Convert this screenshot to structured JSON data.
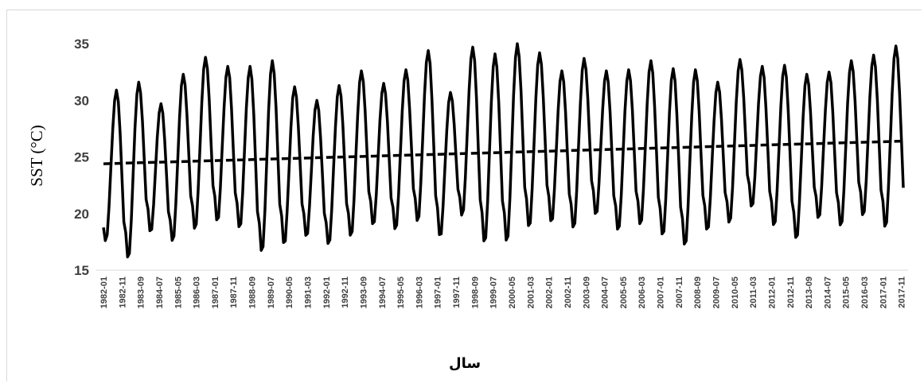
{
  "chart_data": {
    "type": "line",
    "title": "",
    "xlabel": "سال",
    "ylabel": "SST (°C)",
    "ylim": [
      15,
      35
    ],
    "yticks": [
      15,
      20,
      25,
      30,
      35
    ],
    "legend": "none",
    "grid": false,
    "x_tick_labels": [
      "1982-01",
      "1982-11",
      "1983-09",
      "1984-07",
      "1985-05",
      "1986-03",
      "1987-01",
      "1987-11",
      "1988-09",
      "1989-07",
      "1990-05",
      "1991-03",
      "1992-01",
      "1992-11",
      "1993-09",
      "1994-07",
      "1995-05",
      "1996-03",
      "1997-01",
      "1997-11",
      "1998-09",
      "1999-07",
      "2000-05",
      "2001-03",
      "2002-01",
      "2002-11",
      "2003-09",
      "2004-07",
      "2005-05",
      "2006-03",
      "2007-01",
      "2007-11",
      "2008-09",
      "2009-07",
      "2010-05",
      "2011-03",
      "2012-01",
      "2012-11",
      "2013-09",
      "2014-07",
      "2015-05",
      "2016-03",
      "2017-01",
      "2017-11"
    ],
    "x_start": "1982-01",
    "x_end": "2017-12",
    "series": [
      {
        "style": "solid",
        "color": "#000000",
        "annual_max": [
          30.9,
          31.6,
          29.7,
          32.3,
          33.8,
          33.0,
          33.0,
          33.5,
          31.2,
          30.0,
          31.3,
          32.6,
          31.5,
          32.7,
          34.4,
          30.7,
          34.7,
          34.1,
          35.0,
          34.2,
          32.6,
          33.7,
          32.6,
          32.7,
          33.5,
          32.8,
          32.7,
          31.6,
          33.6,
          33.0,
          33.1,
          32.3,
          32.5,
          33.5,
          34.0,
          34.8
        ],
        "annual_min": [
          17.2,
          15.4,
          17.8,
          17.0,
          18.0,
          18.7,
          18.1,
          15.9,
          16.6,
          17.4,
          16.7,
          17.4,
          18.4,
          18.0,
          18.7,
          17.3,
          19.3,
          16.7,
          16.8,
          18.1,
          18.6,
          18.1,
          19.3,
          17.9,
          18.4,
          17.4,
          16.5,
          17.9,
          18.6,
          20.0,
          18.3,
          17.1,
          19.0,
          18.3,
          19.2,
          18.1
        ]
      },
      {
        "style": "dashed",
        "color": "#000000",
        "trend": {
          "start": 24.4,
          "end": 26.4
        }
      }
    ]
  }
}
